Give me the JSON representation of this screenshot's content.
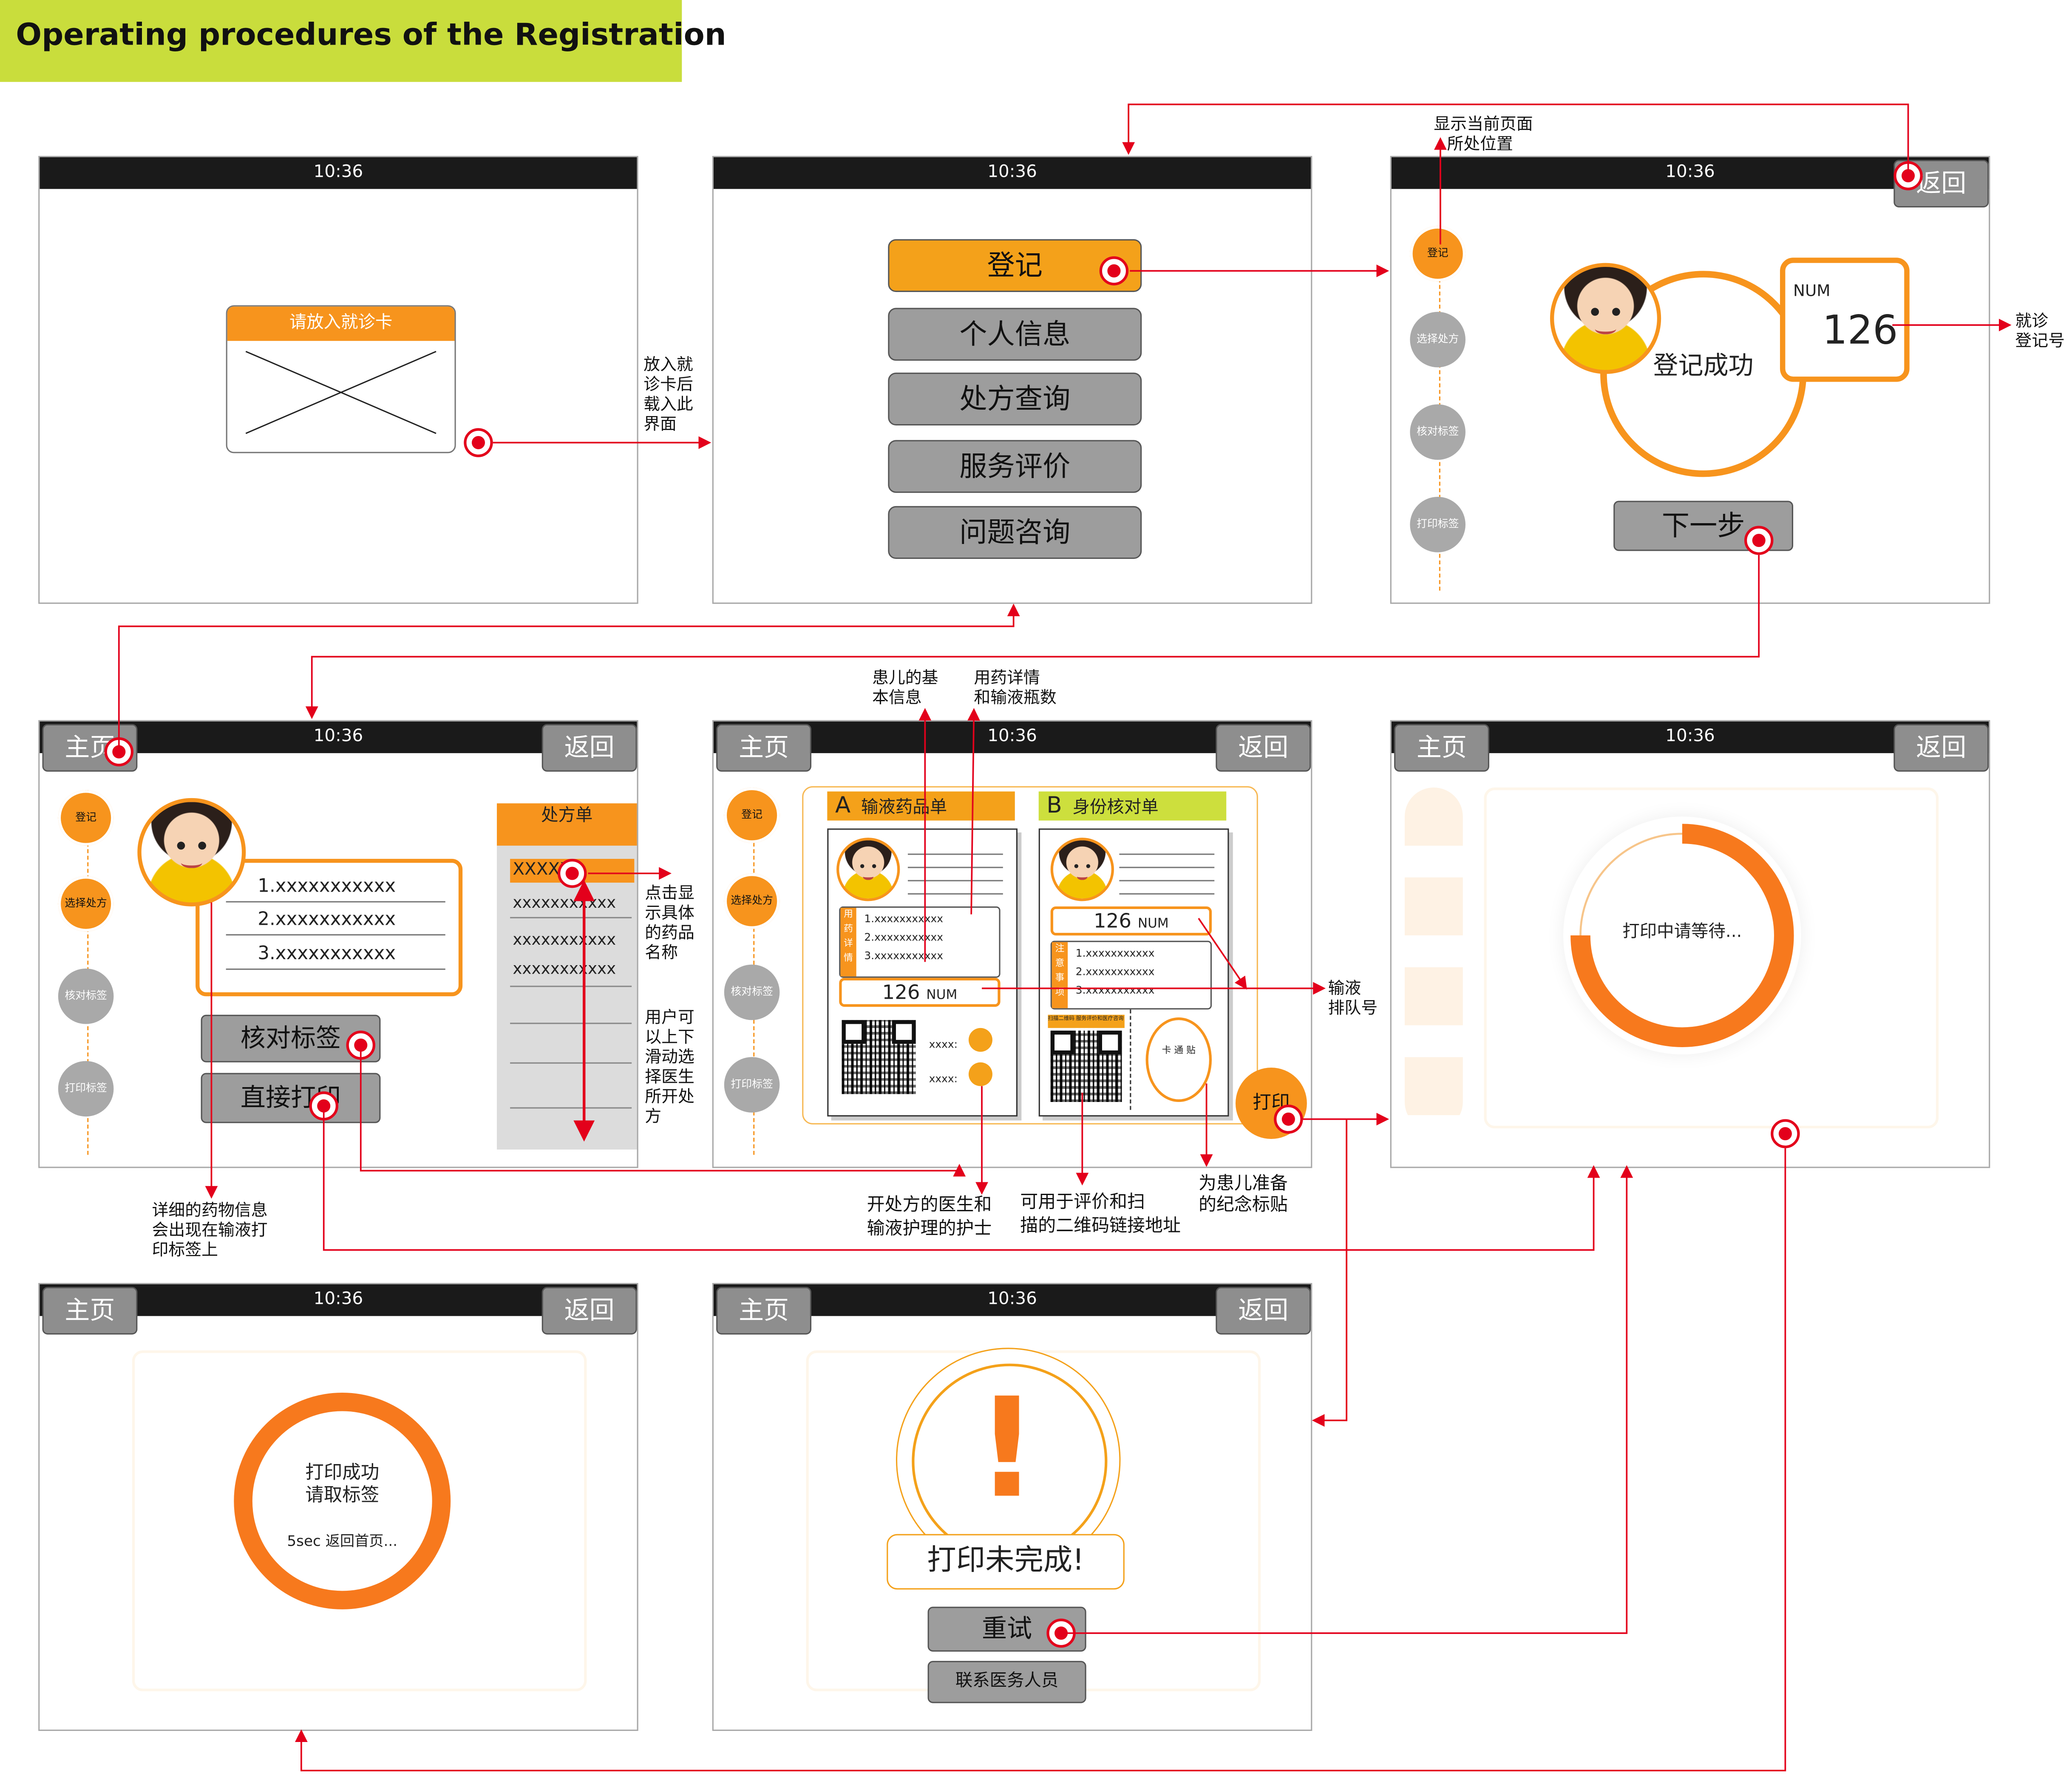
{
  "title": "Operating procedures of the Registration",
  "clock": "10:36",
  "nav": {
    "home": "主页",
    "back": "返回"
  },
  "steps": [
    "登记",
    "选择处方",
    "核对标签",
    "打印标签"
  ],
  "screen1": {
    "card_label": "请放入就诊卡"
  },
  "screen2": {
    "menu": [
      "登记",
      "个人信息",
      "处方查询",
      "服务评价",
      "问题咨询"
    ]
  },
  "screen3": {
    "num_label": "NUM",
    "num_value": "126",
    "success": "登记成功",
    "next": "下一步",
    "back": "返回"
  },
  "screen4": {
    "items": [
      "1.xxxxxxxxxxx",
      "2.xxxxxxxxxxx",
      "3.xxxxxxxxxxx"
    ],
    "check_label": "核对标签",
    "direct_print": "直接打印",
    "rx_header": "处方单",
    "rx_selected": "XXXXX",
    "rx_rows": [
      "xxxxxxxxxxx",
      "xxxxxxxxxxx",
      "xxxxxxxxxxx"
    ]
  },
  "screen5": {
    "a_letter": "A",
    "a_title": "输液药品单",
    "b_letter": "B",
    "b_title": "身份核对单",
    "a_side": "用药详情",
    "b_side": "注意事项",
    "items": [
      "1.xxxxxxxxxxx",
      "2.xxxxxxxxxxx",
      "3.xxxxxxxxxxx"
    ],
    "num_value": "126",
    "num_label": "NUM",
    "staff": [
      "xxxx:",
      "xxxx:"
    ],
    "qr_caption": "扫描二维码 服务评价和医疗咨询",
    "sticker": "卡 通 贴",
    "print": "打印"
  },
  "screen6": {
    "waiting": "打印中请等待...",
    "progress": 0.75
  },
  "screen7": {
    "line1": "打印成功",
    "line2": "请取标签",
    "line3": "5sec 返回首页..."
  },
  "screen8": {
    "exclaim": "!",
    "message": "打印未完成!",
    "retry": "重试",
    "contact": "联系医务人员"
  },
  "annotations": {
    "insert_card": [
      "放入就",
      "诊卡后",
      "载入此",
      "界面"
    ],
    "position": [
      "显示当前页面",
      "所处位置"
    ],
    "reg_num": [
      "就诊",
      "登记号"
    ],
    "patient_info": [
      "患儿的基",
      "本信息"
    ],
    "med_details": [
      "用药详情",
      "和输液瓶数"
    ],
    "click_show": [
      "点击显",
      "示具体",
      "的药品",
      "名称"
    ],
    "scroll": [
      "用户可",
      "以上下",
      "滑动选",
      "择医生",
      "所开处",
      "方"
    ],
    "queue": [
      "输液",
      "排队号"
    ],
    "doctor_nurse": [
      "开处方的医生和",
      "输液护理的护士"
    ],
    "qr_link": [
      "可用于评价和扫",
      "描的二维码链接地址"
    ],
    "souvenir": [
      "为患儿准备",
      "的纪念标贴"
    ],
    "drug_detail": [
      "详细的药物信息",
      "会出现在输液打",
      "印标签上"
    ]
  },
  "colors": {
    "accent": "#f7941d",
    "green": "#c9dd3c",
    "hotspot": "#e3001b",
    "gray": "#8e8e8e"
  }
}
